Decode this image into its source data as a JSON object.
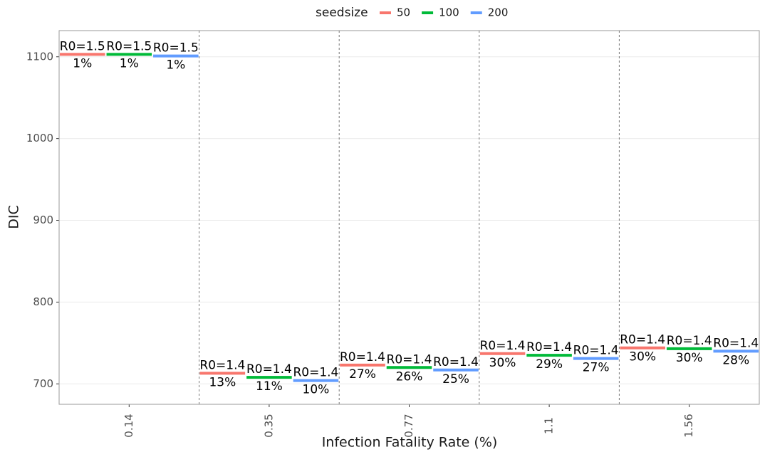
{
  "chart_data": {
    "type": "dodged-segment",
    "x_label": "Infection Fatality Rate (%)",
    "y_label": "DIC",
    "legend_title": "seedsize",
    "categories": [
      "0.14",
      "0.35",
      "0.77",
      "1.1",
      "1.56"
    ],
    "series": [
      {
        "name": "50",
        "color": "#f8766d",
        "values": [
          1103,
          713,
          723,
          737,
          744
        ],
        "r0_labels": [
          "R0=1.5",
          "R0=1.4",
          "R0=1.4",
          "R0=1.4",
          "R0=1.4"
        ],
        "pct_labels": [
          "1%",
          "13%",
          "27%",
          "30%",
          "30%"
        ]
      },
      {
        "name": "100",
        "color": "#00ba38",
        "values": [
          1103,
          708,
          720,
          735,
          743
        ],
        "r0_labels": [
          "R0=1.5",
          "R0=1.4",
          "R0=1.4",
          "R0=1.4",
          "R0=1.4"
        ],
        "pct_labels": [
          "1%",
          "11%",
          "26%",
          "29%",
          "30%"
        ]
      },
      {
        "name": "200",
        "color": "#619cff",
        "values": [
          1101,
          704,
          717,
          731,
          740
        ],
        "r0_labels": [
          "R0=1.5",
          "R0=1.4",
          "R0=1.4",
          "R0=1.4",
          "R0=1.4"
        ],
        "pct_labels": [
          "1%",
          "10%",
          "25%",
          "27%",
          "28%"
        ]
      }
    ],
    "ylim": [
      675,
      1132
    ],
    "yticks": [
      700,
      800,
      900,
      1000,
      1100
    ],
    "grid": true
  }
}
